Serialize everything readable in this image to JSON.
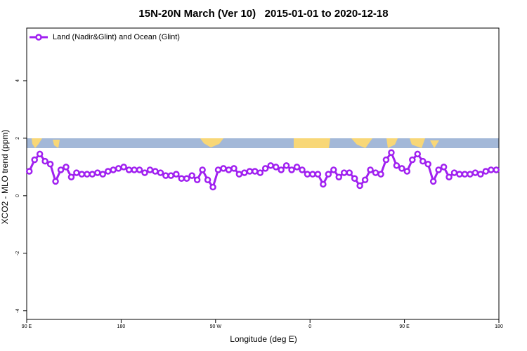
{
  "chart_data": {
    "type": "line",
    "title": "15N-20N March (Ver 10)   2015-01-01 to 2020-12-18",
    "x_label": "Longitude (deg E)",
    "y_label": "XCO2 - MLO trend (ppm)",
    "legend": "top-left",
    "xlim": [
      90,
      540
    ],
    "xticks": [
      {
        "value": 90,
        "label": "90 E"
      },
      {
        "value": 180,
        "label": "180"
      },
      {
        "value": 270,
        "label": "90 W"
      },
      {
        "value": 360,
        "label": "0"
      },
      {
        "value": 450,
        "label": "90 E"
      },
      {
        "value": 540,
        "label": "180"
      }
    ],
    "ylim": [
      -4.3,
      5.83
    ],
    "yticks": [
      -4,
      -2,
      0,
      2,
      4
    ],
    "x": [
      92.5,
      97.5,
      102.5,
      107.5,
      112.5,
      117.5,
      122.5,
      127.5,
      132.5,
      137.5,
      142.5,
      147.5,
      152.5,
      157.5,
      162.5,
      167.5,
      172.5,
      177.5,
      182.5,
      187.5,
      192.5,
      197.5,
      202.5,
      207.5,
      212.5,
      217.5,
      222.5,
      227.5,
      232.5,
      237.5,
      242.5,
      247.5,
      252.5,
      257.5,
      262.5,
      267.5,
      272.5,
      277.5,
      282.5,
      287.5,
      292.5,
      297.5,
      302.5,
      307.5,
      312.5,
      317.5,
      322.5,
      327.5,
      332.5,
      337.5,
      342.5,
      347.5,
      352.5,
      357.5,
      362.5,
      367.5,
      372.5,
      377.5,
      382.5,
      387.5,
      392.5,
      397.5,
      402.5,
      407.5,
      412.5,
      417.5,
      422.5,
      427.5,
      432.5,
      437.5,
      442.5,
      447.5,
      452.5,
      457.5,
      462.5,
      467.5,
      472.5,
      477.5,
      482.5,
      487.5,
      492.5,
      497.5,
      502.5,
      507.5,
      512.5,
      517.5,
      522.5,
      527.5,
      532.5,
      537.5
    ],
    "series": [
      {
        "name": "Land (Nadir&Glint) and Ocean (Glint)",
        "color": "#a020f0",
        "values": [
          0.85,
          1.25,
          1.45,
          1.2,
          1.1,
          0.5,
          0.9,
          1.0,
          0.65,
          0.8,
          0.75,
          0.75,
          0.75,
          0.8,
          0.75,
          0.85,
          0.9,
          0.95,
          1.0,
          0.9,
          0.9,
          0.9,
          0.8,
          0.9,
          0.85,
          0.8,
          0.7,
          0.7,
          0.75,
          0.6,
          0.6,
          0.7,
          0.55,
          0.9,
          0.55,
          0.3,
          0.9,
          0.95,
          0.9,
          0.95,
          0.75,
          0.8,
          0.85,
          0.85,
          0.8,
          0.95,
          1.05,
          1.0,
          0.9,
          1.05,
          0.9,
          1.0,
          0.9,
          0.75,
          0.75,
          0.75,
          0.4,
          0.75,
          0.9,
          0.65,
          0.8,
          0.8,
          0.6,
          0.35,
          0.55,
          0.9,
          0.8,
          0.75,
          1.25,
          1.5,
          1.05,
          0.95,
          0.85,
          1.25,
          1.45,
          1.2,
          1.1,
          0.5,
          0.9,
          1.0,
          0.65,
          0.8,
          0.75,
          0.75,
          0.75,
          0.8,
          0.75,
          0.85,
          0.9,
          0.9
        ]
      }
    ]
  }
}
